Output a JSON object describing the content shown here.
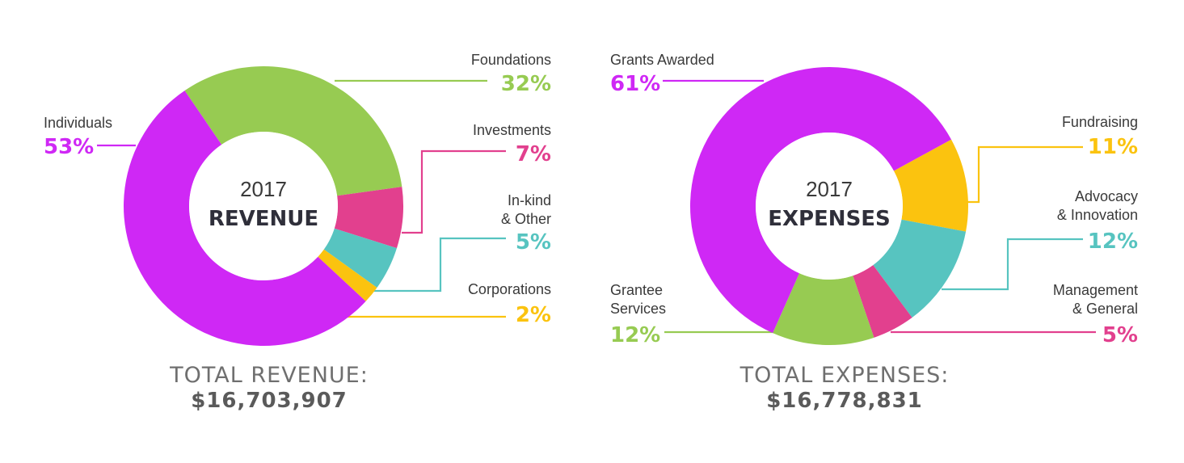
{
  "chart_data": [
    {
      "type": "pie",
      "year": "2017",
      "kind": "REVENUE",
      "total_label": "TOTAL REVENUE:",
      "total_value": "$16,703,907",
      "slices": [
        {
          "label": "Foundations",
          "value": 32,
          "pct_text": "32%",
          "color": "#97cb52"
        },
        {
          "label": "Investments",
          "value": 7,
          "pct_text": "7%",
          "color": "#e2408e"
        },
        {
          "label": "In-kind\n& Other",
          "value": 5,
          "pct_text": "5%",
          "color": "#57c4c0"
        },
        {
          "label": "Corporations",
          "value": 2,
          "pct_text": "2%",
          "color": "#fbc30f"
        },
        {
          "label": "Individuals",
          "value": 53,
          "pct_text": "53%",
          "color": "#cf28f5"
        }
      ]
    },
    {
      "type": "pie",
      "year": "2017",
      "kind": "EXPENSES",
      "total_label": "TOTAL EXPENSES:",
      "total_value": "$16,778,831",
      "slices": [
        {
          "label": "Fundraising",
          "value": 11,
          "pct_text": "11%",
          "color": "#fbc30f"
        },
        {
          "label": "Advocacy\n& Innovation",
          "value": 12,
          "pct_text": "12%",
          "color": "#57c4c0"
        },
        {
          "label": "Management\n& General",
          "value": 5,
          "pct_text": "5%",
          "color": "#e2408e"
        },
        {
          "label": "Grantee\nServices",
          "value": 12,
          "pct_text": "12%",
          "color": "#97cb52"
        },
        {
          "label": "Grants Awarded",
          "value": 61,
          "pct_text": "61%",
          "color": "#cf28f5"
        }
      ]
    }
  ]
}
